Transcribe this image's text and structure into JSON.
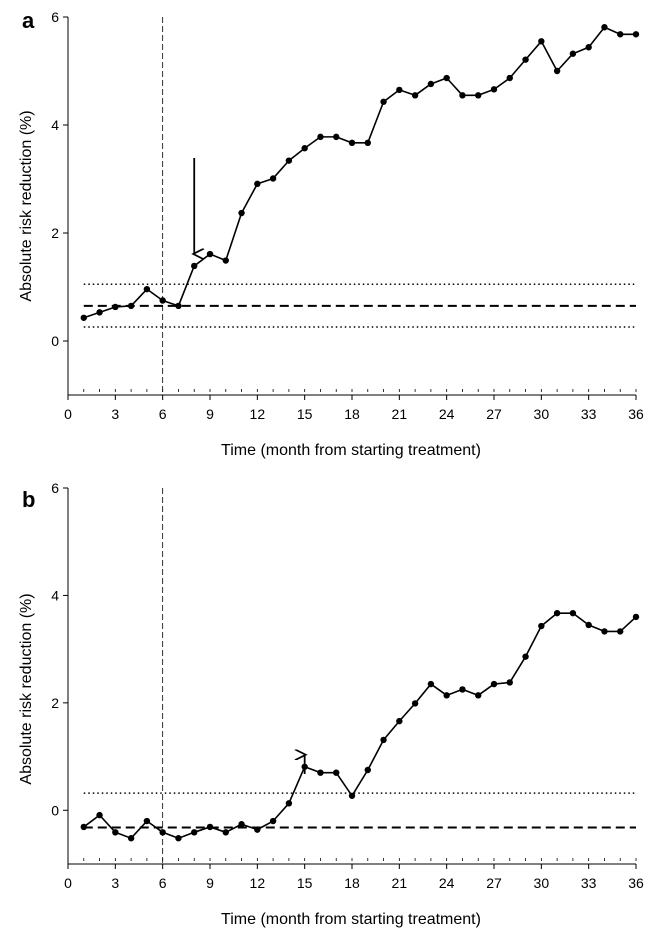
{
  "chart_data": [
    {
      "type": "line",
      "panel_label": "a",
      "xlabel": "Time (month from starting treatment)",
      "ylabel": "Absolute risk reduction (%)",
      "xlim": [
        0,
        36
      ],
      "ylim": [
        -1,
        6
      ],
      "xticks": [
        0,
        3,
        6,
        9,
        12,
        15,
        18,
        21,
        24,
        27,
        30,
        33,
        36
      ],
      "yticks": [
        0,
        2,
        4,
        6
      ],
      "series": [
        {
          "x": [
            1,
            2,
            3,
            4,
            5,
            6,
            7,
            8,
            9,
            10,
            11,
            12,
            13,
            14,
            15,
            16,
            17,
            18,
            19,
            20,
            21,
            22,
            23,
            24,
            25,
            26,
            27,
            28,
            29,
            30,
            31,
            32,
            33,
            34,
            35,
            36
          ],
          "values": [
            0.43,
            0.53,
            0.63,
            0.65,
            0.96,
            0.75,
            0.65,
            1.39,
            1.61,
            1.49,
            2.37,
            2.91,
            3.01,
            3.34,
            3.57,
            3.78,
            3.78,
            3.67,
            3.67,
            4.43,
            4.65,
            4.55,
            4.76,
            4.87,
            4.55,
            4.55,
            4.66,
            4.87,
            5.21,
            5.55,
            5.0,
            5.32,
            5.44,
            5.81,
            5.68,
            5.68
          ]
        }
      ],
      "reference_lines": {
        "dashed_y": 0.65,
        "dotted_y": [
          0.26,
          1.05
        ],
        "vertical_x": 6
      },
      "arrow_x": 8
    },
    {
      "type": "line",
      "panel_label": "b",
      "xlabel": "Time (month from starting treatment)",
      "ylabel": "Absolute risk reduction (%)",
      "xlim": [
        0,
        36
      ],
      "ylim": [
        -1,
        6
      ],
      "xticks": [
        0,
        3,
        6,
        9,
        12,
        15,
        18,
        21,
        24,
        27,
        30,
        33,
        36
      ],
      "yticks": [
        0,
        2,
        4,
        6
      ],
      "series": [
        {
          "x": [
            1,
            2,
            3,
            4,
            5,
            6,
            7,
            8,
            9,
            10,
            11,
            12,
            13,
            14,
            15,
            16,
            17,
            18,
            19,
            20,
            21,
            22,
            23,
            24,
            25,
            26,
            27,
            28,
            29,
            30,
            31,
            32,
            33,
            34,
            35,
            36
          ],
          "values": [
            -0.31,
            -0.09,
            -0.41,
            -0.52,
            -0.2,
            -0.41,
            -0.52,
            -0.41,
            -0.31,
            -0.41,
            -0.26,
            -0.36,
            -0.2,
            0.13,
            0.81,
            0.7,
            0.7,
            0.27,
            0.75,
            1.31,
            1.66,
            1.99,
            2.35,
            2.14,
            2.25,
            2.14,
            2.35,
            2.38,
            2.86,
            3.43,
            3.67,
            3.67,
            3.45,
            3.33,
            3.33,
            3.6
          ]
        }
      ],
      "reference_lines": {
        "dashed_y": -0.32,
        "dotted_y": [
          0.32
        ],
        "vertical_x": 6
      },
      "arrow_x": 15
    }
  ]
}
